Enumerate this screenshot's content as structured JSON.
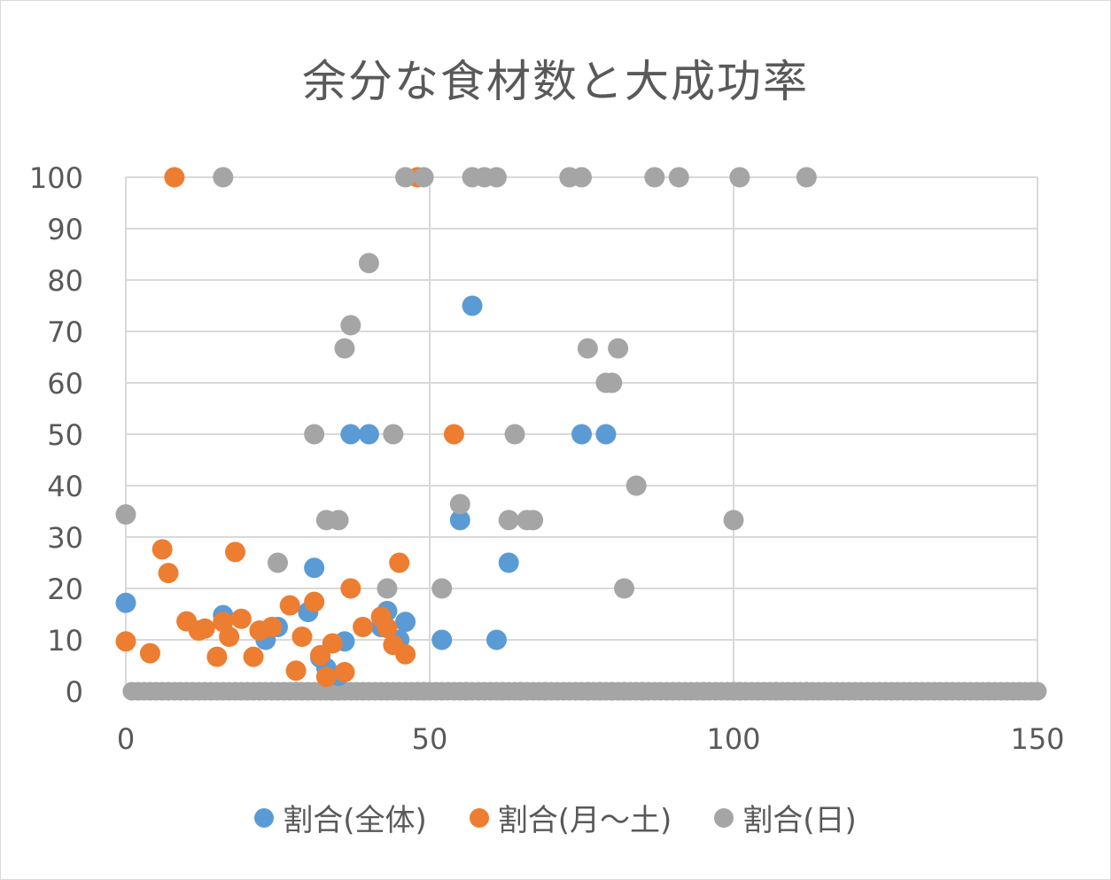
{
  "chart_data": {
    "type": "scatter",
    "title": "余分な食材数と大成功率",
    "xlim": [
      0,
      150
    ],
    "ylim": [
      0,
      100
    ],
    "x_ticks": [
      "0",
      "50",
      "100",
      "150"
    ],
    "y_ticks": [
      "0",
      "10",
      "20",
      "30",
      "40",
      "50",
      "60",
      "70",
      "80",
      "90",
      "100"
    ],
    "grid": true,
    "legend_position": "bottom",
    "series": [
      {
        "name": "割合(全体)",
        "color": "#5b9bd5",
        "points": [
          [
            0,
            17.2
          ],
          [
            16,
            14.8
          ],
          [
            23,
            10
          ],
          [
            25,
            12.5
          ],
          [
            30,
            15.4
          ],
          [
            31,
            24
          ],
          [
            32,
            6.5
          ],
          [
            33,
            4.5
          ],
          [
            35,
            3
          ],
          [
            36,
            9.7
          ],
          [
            37,
            50
          ],
          [
            40,
            50
          ],
          [
            42,
            12.5
          ],
          [
            43,
            15.6
          ],
          [
            45,
            10
          ],
          [
            46,
            13.5
          ],
          [
            52,
            10
          ],
          [
            55,
            33.3
          ],
          [
            57,
            75
          ],
          [
            61,
            10
          ],
          [
            63,
            25
          ],
          [
            75,
            50
          ],
          [
            79,
            50
          ]
        ]
      },
      {
        "name": "割合(月～土)",
        "color": "#ed7d31",
        "points": [
          [
            0,
            9.7
          ],
          [
            4,
            7.4
          ],
          [
            6,
            27.6
          ],
          [
            7,
            23
          ],
          [
            8,
            100
          ],
          [
            10,
            13.6
          ],
          [
            12,
            11.8
          ],
          [
            13,
            12.2
          ],
          [
            15,
            6.7
          ],
          [
            16,
            13.5
          ],
          [
            17,
            10.6
          ],
          [
            18,
            27.1
          ],
          [
            19,
            14.1
          ],
          [
            21,
            6.7
          ],
          [
            22,
            11.8
          ],
          [
            24,
            12.5
          ],
          [
            27,
            16.7
          ],
          [
            28,
            4
          ],
          [
            29,
            10.6
          ],
          [
            31,
            17.4
          ],
          [
            32,
            7
          ],
          [
            33,
            2.8
          ],
          [
            34,
            9.3
          ],
          [
            36,
            3.7
          ],
          [
            37,
            20
          ],
          [
            39,
            12.5
          ],
          [
            42,
            14.5
          ],
          [
            43,
            12.3
          ],
          [
            44,
            9
          ],
          [
            45,
            25
          ],
          [
            46,
            7.2
          ],
          [
            48,
            100
          ],
          [
            54,
            50
          ]
        ]
      },
      {
        "name": "割合(日)",
        "color": "#a5a5a5",
        "points": [
          [
            0,
            34.4
          ],
          [
            16,
            100
          ],
          [
            25,
            25
          ],
          [
            31,
            50
          ],
          [
            33,
            33.3
          ],
          [
            35,
            33.3
          ],
          [
            36,
            66.7
          ],
          [
            37,
            71.2
          ],
          [
            40,
            83.3
          ],
          [
            43,
            20
          ],
          [
            44,
            50
          ],
          [
            46,
            100
          ],
          [
            49,
            100
          ],
          [
            52,
            20
          ],
          [
            55,
            36.4
          ],
          [
            57,
            100
          ],
          [
            59,
            100
          ],
          [
            61,
            100
          ],
          [
            63,
            33.3
          ],
          [
            64,
            50
          ],
          [
            66,
            33.3
          ],
          [
            67,
            33.3
          ],
          [
            73,
            100
          ],
          [
            75,
            100
          ],
          [
            76,
            66.7
          ],
          [
            79,
            60
          ],
          [
            80,
            60
          ],
          [
            81,
            66.7
          ],
          [
            82,
            20
          ],
          [
            84,
            40
          ],
          [
            87,
            100
          ],
          [
            91,
            100
          ],
          [
            100,
            33.3
          ],
          [
            101,
            100
          ],
          [
            112,
            100
          ]
        ]
      }
    ]
  }
}
